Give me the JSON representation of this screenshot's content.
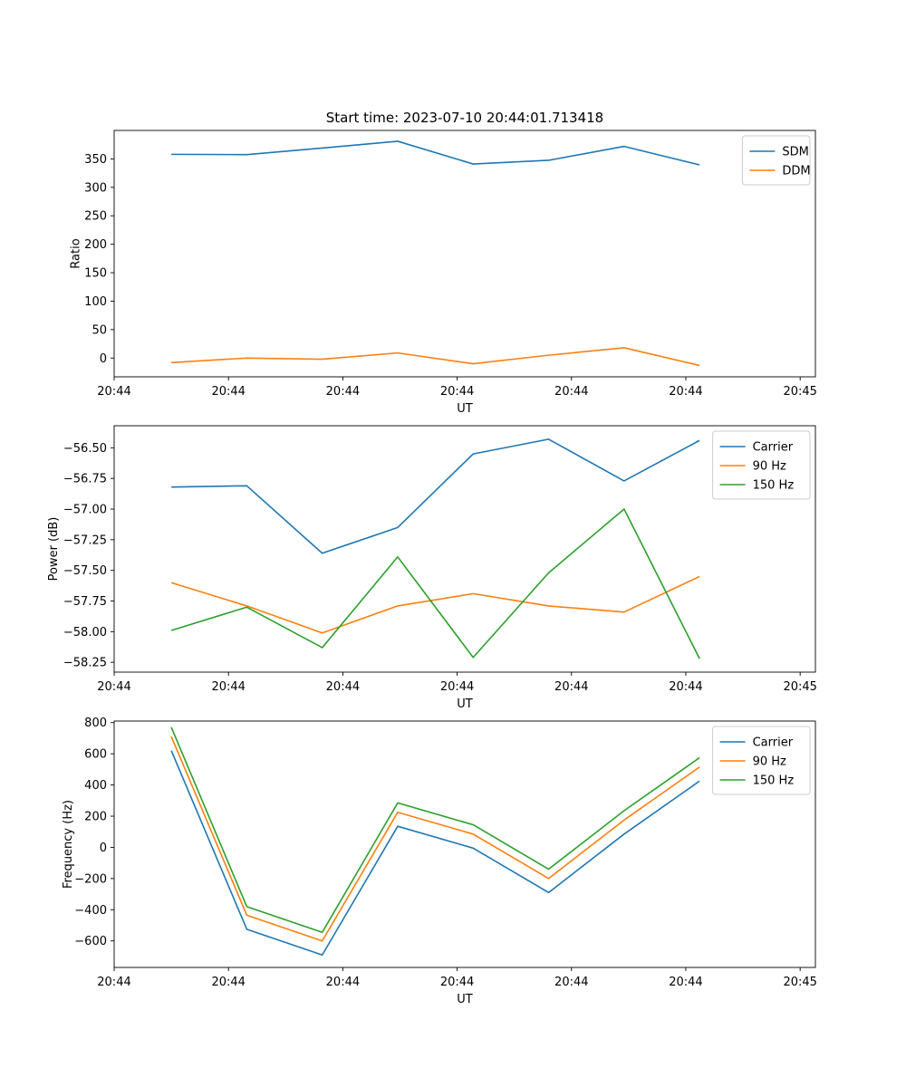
{
  "chart_data": [
    {
      "type": "line",
      "title": "Start time: 2023-07-10 20:44:01.713418",
      "xlabel": "UT",
      "ylabel": "Ratio",
      "xlim": [
        0,
        9.2
      ],
      "ylim": [
        -33,
        400
      ],
      "xticks": [
        0,
        1.5,
        3,
        4.5,
        6,
        7.5,
        9
      ],
      "xtick_labels": [
        "20:44",
        "20:44",
        "20:44",
        "20:44",
        "20:44",
        "20:44",
        "20:45"
      ],
      "yticks": [
        0,
        50,
        100,
        150,
        200,
        250,
        300,
        350
      ],
      "ytick_labels": [
        "0",
        "50",
        "100",
        "150",
        "200",
        "250",
        "300",
        "350"
      ],
      "x": [
        0.75,
        1.74,
        2.73,
        3.72,
        4.71,
        5.7,
        6.69,
        7.68
      ],
      "legend_loc": "upper right",
      "series": [
        {
          "name": "SDM",
          "color": "#1f77b4",
          "values": [
            358,
            357.5,
            369,
            381,
            341,
            347.5,
            372,
            339.5
          ]
        },
        {
          "name": "DDM",
          "color": "#ff7f0e",
          "values": [
            -8,
            0,
            -2,
            9,
            -10,
            5,
            18,
            -13
          ]
        }
      ]
    },
    {
      "type": "line",
      "title": "",
      "xlabel": "UT",
      "ylabel": "Power (dB)",
      "xlim": [
        0,
        9.2
      ],
      "ylim": [
        -58.33,
        -56.32
      ],
      "xticks": [
        0,
        1.5,
        3,
        4.5,
        6,
        7.5,
        9
      ],
      "xtick_labels": [
        "20:44",
        "20:44",
        "20:44",
        "20:44",
        "20:44",
        "20:44",
        "20:45"
      ],
      "yticks": [
        -58.25,
        -58.0,
        -57.75,
        -57.5,
        -57.25,
        -57.0,
        -56.75,
        -56.5
      ],
      "ytick_labels": [
        "−58.25",
        "−58.00",
        "−57.75",
        "−57.50",
        "−57.25",
        "−57.00",
        "−56.75",
        "−56.50"
      ],
      "x": [
        0.75,
        1.74,
        2.73,
        3.72,
        4.71,
        5.7,
        6.69,
        7.68
      ],
      "legend_loc": "upper right",
      "series": [
        {
          "name": "Carrier",
          "color": "#1f77b4",
          "values": [
            -56.82,
            -56.81,
            -57.36,
            -57.15,
            -56.55,
            -56.43,
            -56.77,
            -56.44
          ]
        },
        {
          "name": "90 Hz",
          "color": "#ff7f0e",
          "values": [
            -57.6,
            -57.79,
            -58.01,
            -57.79,
            -57.69,
            -57.79,
            -57.84,
            -57.55
          ]
        },
        {
          "name": "150 Hz",
          "color": "#2ca02c",
          "values": [
            -57.99,
            -57.8,
            -58.13,
            -57.39,
            -58.21,
            -57.52,
            -57.0,
            -58.22
          ]
        }
      ]
    },
    {
      "type": "line",
      "title": "",
      "xlabel": "UT",
      "ylabel": "Frequency (Hz)",
      "xlim": [
        0,
        9.2
      ],
      "ylim": [
        -770,
        810
      ],
      "xticks": [
        0,
        1.5,
        3,
        4.5,
        6,
        7.5,
        9
      ],
      "xtick_labels": [
        "20:44",
        "20:44",
        "20:44",
        "20:44",
        "20:44",
        "20:44",
        "20:45"
      ],
      "yticks": [
        -600,
        -400,
        -200,
        0,
        200,
        400,
        600,
        800
      ],
      "ytick_labels": [
        "−600",
        "−400",
        "−200",
        "0",
        "200",
        "400",
        "600",
        "800"
      ],
      "x": [
        0.75,
        1.74,
        2.73,
        3.72,
        4.71,
        5.7,
        6.69,
        7.68
      ],
      "legend_loc": "upper right",
      "series": [
        {
          "name": "Carrier",
          "color": "#1f77b4",
          "values": [
            620,
            -525,
            -690,
            135,
            -5,
            -290,
            85,
            425
          ]
        },
        {
          "name": "90 Hz",
          "color": "#ff7f0e",
          "values": [
            710,
            -435,
            -600,
            225,
            85,
            -200,
            175,
            515
          ]
        },
        {
          "name": "150 Hz",
          "color": "#2ca02c",
          "values": [
            770,
            -380,
            -545,
            285,
            145,
            -140,
            235,
            575
          ]
        }
      ]
    }
  ]
}
